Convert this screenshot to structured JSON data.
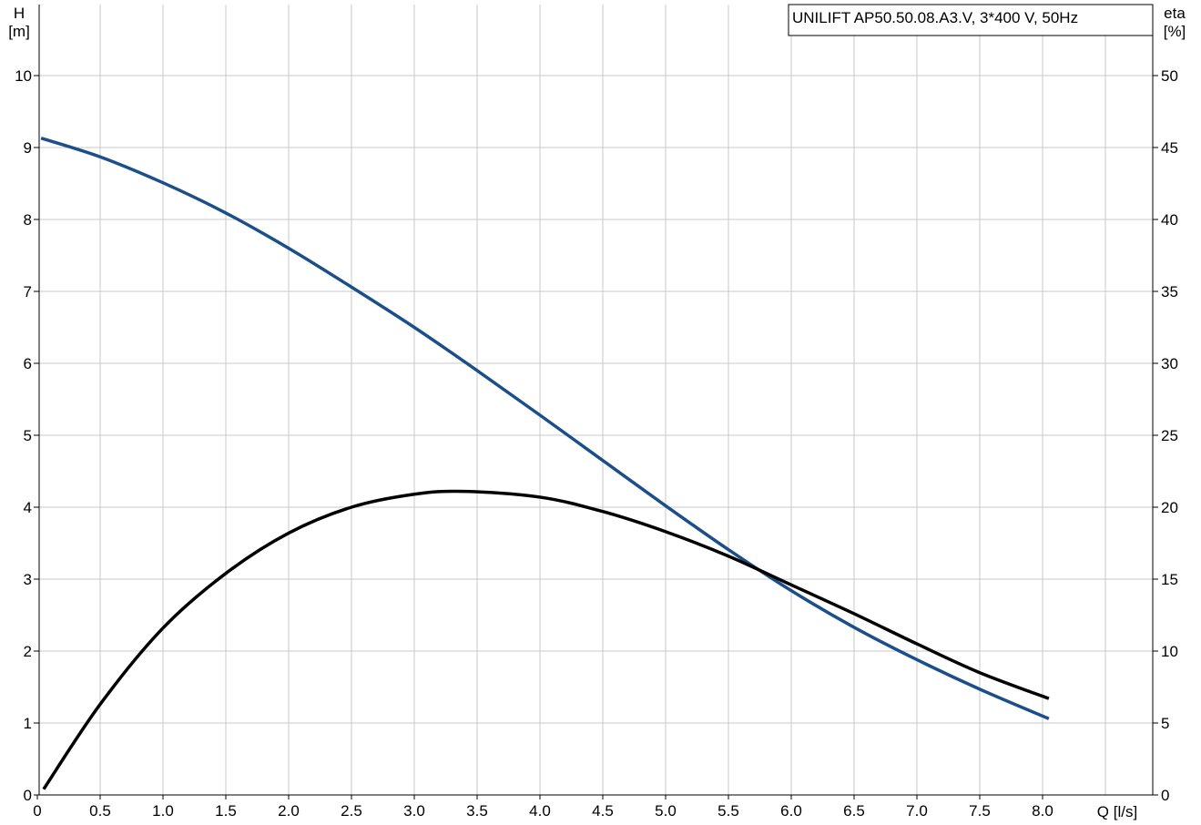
{
  "chart_data": {
    "type": "line",
    "title": "UNILIFT AP50.50.08.A3.V, 3*400 V, 50Hz",
    "xlabel": "Q [l/s]",
    "ylabel_left": {
      "symbol": "H",
      "unit": "[m]"
    },
    "ylabel_right": {
      "symbol": "eta",
      "unit": "[%]"
    },
    "xlim": [
      0,
      8.8
    ],
    "ylim_left": [
      0,
      10.2
    ],
    "ylim_right": [
      0,
      51
    ],
    "grid": true,
    "legend_position": "top-right",
    "x_ticks": [
      "0",
      "0.5",
      "1.0",
      "1.5",
      "2.0",
      "2.5",
      "3.0",
      "3.5",
      "4.0",
      "4.5",
      "5.0",
      "5.5",
      "6.0",
      "6.5",
      "7.0",
      "7.5",
      "8.0"
    ],
    "y_left_ticks": [
      "0",
      "1",
      "2",
      "3",
      "4",
      "5",
      "6",
      "7",
      "8",
      "9",
      "10"
    ],
    "y_right_ticks": [
      "0",
      "5",
      "10",
      "15",
      "20",
      "25",
      "30",
      "35",
      "40",
      "45",
      "50"
    ],
    "series": [
      {
        "name": "H",
        "axis": "left",
        "color": "#1b4f8a",
        "x": [
          0.03,
          0.5,
          1.0,
          1.5,
          2.0,
          2.5,
          3.0,
          3.5,
          4.0,
          4.5,
          5.0,
          5.5,
          6.0,
          6.5,
          7.0,
          7.5,
          8.05
        ],
        "y": [
          9.13,
          8.87,
          8.51,
          8.09,
          7.6,
          7.06,
          6.5,
          5.9,
          5.28,
          4.65,
          4.02,
          3.41,
          2.84,
          2.33,
          1.88,
          1.47,
          1.06
        ]
      },
      {
        "name": "eta",
        "axis": "right",
        "color": "#000000",
        "x": [
          0.05,
          0.5,
          1.0,
          1.5,
          2.0,
          2.5,
          3.0,
          3.4,
          4.0,
          4.5,
          5.0,
          5.5,
          6.0,
          6.5,
          7.0,
          7.5,
          8.05
        ],
        "y": [
          0.4,
          6.3,
          11.6,
          15.4,
          18.2,
          20.0,
          20.9,
          21.1,
          20.7,
          19.7,
          18.3,
          16.6,
          14.6,
          12.6,
          10.5,
          8.5,
          6.7
        ]
      }
    ]
  }
}
